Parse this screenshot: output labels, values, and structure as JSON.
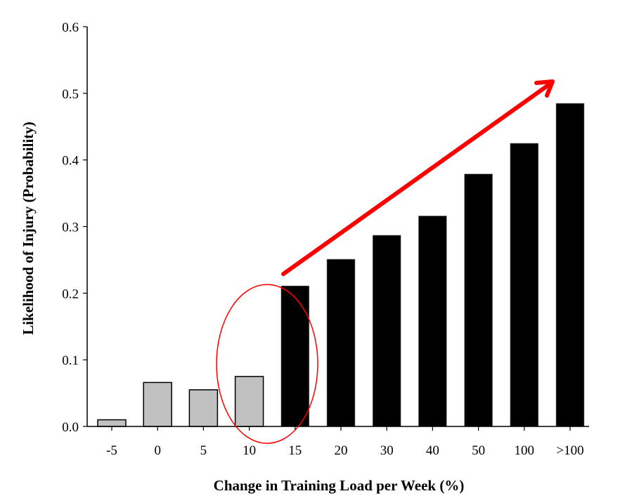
{
  "chart_data": {
    "type": "bar",
    "title": "",
    "xlabel": "Change in Training Load per Week (%)",
    "ylabel": "Likelihood of Injury (Probability)",
    "ylim": [
      0.0,
      0.6
    ],
    "yticks": [
      "0.0",
      "0.1",
      "0.2",
      "0.3",
      "0.4",
      "0.5",
      "0.6"
    ],
    "categories": [
      "-5",
      "0",
      "5",
      "10",
      "15",
      "20",
      "30",
      "40",
      "50",
      "100",
      ">100"
    ],
    "values": [
      0.01,
      0.066,
      0.055,
      0.075,
      0.211,
      0.251,
      0.287,
      0.316,
      0.379,
      0.425,
      0.485
    ],
    "bar_colors": [
      "#c0c0c0",
      "#c0c0c0",
      "#c0c0c0",
      "#c0c0c0",
      "#000000",
      "#000000",
      "#000000",
      "#000000",
      "#000000",
      "#000000",
      "#000000"
    ],
    "grid": false,
    "legend": null,
    "annotations": [
      {
        "type": "ellipse",
        "description": "red circle highlighting the transition between 10% and 15%",
        "color": "#ff0000"
      },
      {
        "type": "arrow",
        "description": "red upward arrow indicating increasing injury likelihood from 15% onward",
        "color": "#ff0000"
      }
    ]
  },
  "colors": {
    "low_bar": "#c0c0c0",
    "high_bar": "#000000",
    "annotation": "#ff0000"
  }
}
